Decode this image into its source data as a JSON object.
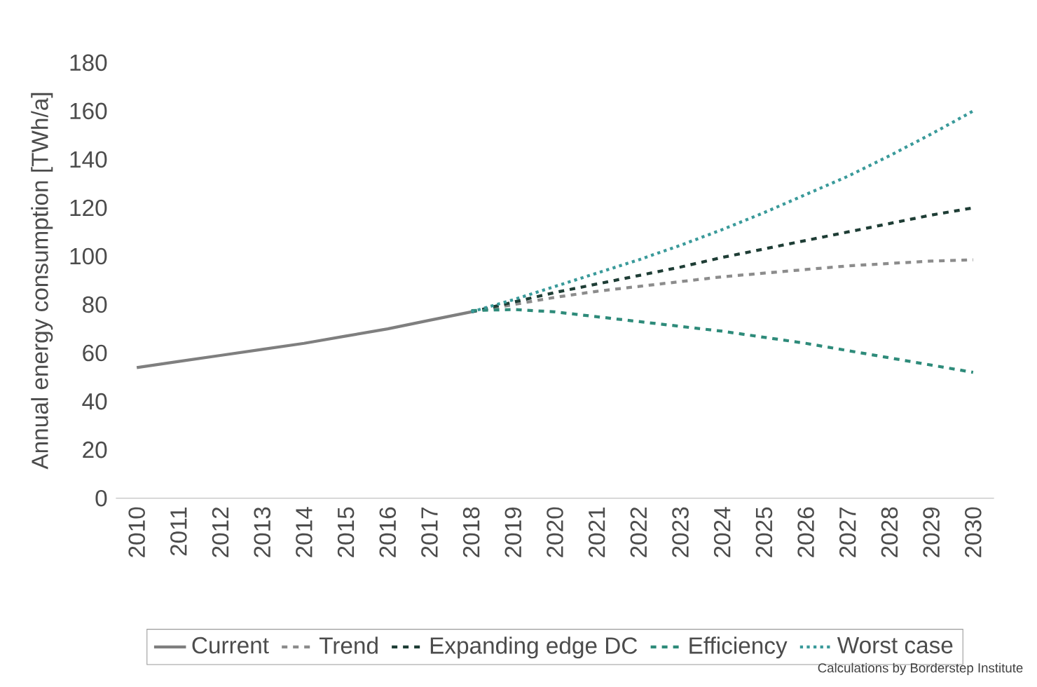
{
  "chart_data": {
    "type": "line",
    "ylabel": "Annual energy consumption [TWh/a]",
    "categories": [
      "2010",
      "2011",
      "2012",
      "2013",
      "2014",
      "2015",
      "2016",
      "2017",
      "2018",
      "2019",
      "2020",
      "2021",
      "2022",
      "2023",
      "2024",
      "2025",
      "2026",
      "2027",
      "2028",
      "2029",
      "2030"
    ],
    "ylim": [
      0,
      180
    ],
    "yticks": [
      0,
      20,
      40,
      60,
      80,
      100,
      120,
      140,
      160,
      180
    ],
    "legend": "bottom",
    "grid": false,
    "series": [
      {
        "name": "Current",
        "color": "#7f7f7f",
        "line_style": "solid",
        "values": [
          54,
          56.5,
          59,
          61.5,
          64,
          67,
          70,
          73.5,
          77,
          null,
          null,
          null,
          null,
          null,
          null,
          null,
          null,
          null,
          null,
          null,
          null
        ]
      },
      {
        "name": "Trend",
        "color": "#8c8c8c",
        "line_style": "dashed",
        "values": [
          null,
          null,
          null,
          null,
          null,
          null,
          null,
          null,
          77,
          80,
          83,
          85.5,
          87.5,
          89.5,
          91.5,
          93,
          94.5,
          96,
          97,
          98,
          98.5
        ]
      },
      {
        "name": "Expanding edge DC",
        "color": "#1e3d35",
        "line_style": "dashed",
        "values": [
          null,
          null,
          null,
          null,
          null,
          null,
          null,
          null,
          77,
          81,
          85,
          88.5,
          92,
          95.5,
          99.5,
          103,
          106.5,
          110,
          113.5,
          117,
          120
        ]
      },
      {
        "name": "Efficiency",
        "color": "#2e8b7a",
        "line_style": "dashed",
        "values": [
          null,
          null,
          null,
          null,
          null,
          null,
          null,
          null,
          77.5,
          78,
          77,
          75,
          73,
          71,
          69,
          66.5,
          64,
          61,
          58,
          55,
          52
        ]
      },
      {
        "name": "Worst case",
        "color": "#3a9a9a",
        "line_style": "dotted",
        "values": [
          null,
          null,
          null,
          null,
          null,
          null,
          null,
          null,
          77,
          82,
          87.5,
          93,
          98.5,
          104.5,
          111,
          118,
          125.5,
          133,
          141.5,
          150.5,
          160
        ]
      }
    ],
    "annotations": [
      "Calculations by Borderstep Institute"
    ]
  }
}
